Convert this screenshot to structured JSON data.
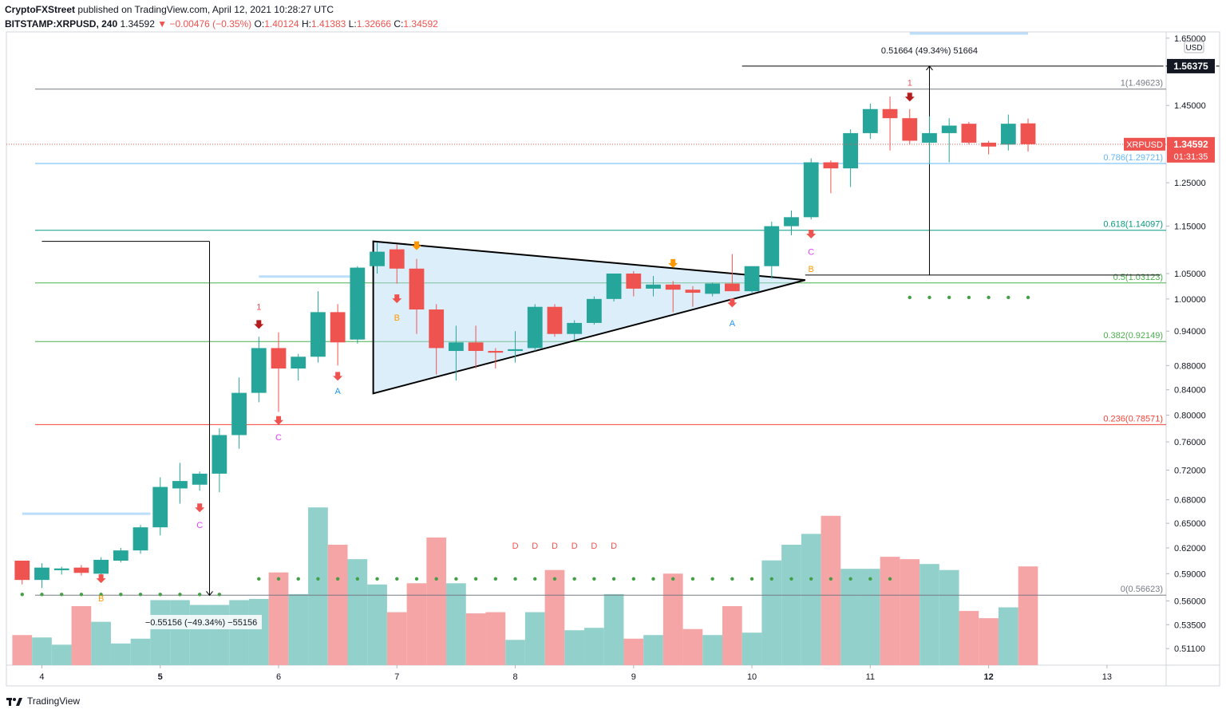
{
  "header": {
    "publisher": "CryptoFXStreet",
    "published_text": "published on TradingView.com, April 12, 2021 10:28:27 UTC",
    "symbol": "BITSTAMP:XRPUSD, 240",
    "last": "1.34592",
    "change": "▼ −0.00476 (−0.35%)",
    "open_label": "O:",
    "open": "1.40124",
    "high_label": "H:",
    "high": "1.41383",
    "low_label": "L:",
    "low": "1.32666",
    "close_label": "C:",
    "close": "1.34592"
  },
  "footer": {
    "brand": "TradingView"
  },
  "colors": {
    "up": "#26a69a",
    "down": "#ef5350",
    "vol_up": "#92d1cb",
    "vol_down": "#f5a5a5"
  },
  "chart_data": {
    "type": "candlestick",
    "y_scale": "log",
    "ylim": [
      0.495,
      1.67
    ],
    "xlim": [
      -0.3,
      58.5
    ],
    "currency": "USD",
    "price_ticks": [
      "1.65000",
      "1.45000",
      "1.25000",
      "1.15000",
      "1.05000",
      "1.00000",
      "0.94000",
      "0.88000",
      "0.84000",
      "0.80000",
      "0.76000",
      "0.72000",
      "0.68000",
      "0.65000",
      "0.62000",
      "0.59000",
      "0.56000",
      "0.53500",
      "0.51100"
    ],
    "x_ticks": [
      {
        "label": "4",
        "x": 1.5,
        "bold": false
      },
      {
        "label": "5",
        "x": 7.5,
        "bold": true
      },
      {
        "label": "6",
        "x": 13.5,
        "bold": false
      },
      {
        "label": "7",
        "x": 19.5,
        "bold": false
      },
      {
        "label": "8",
        "x": 25.5,
        "bold": false
      },
      {
        "label": "9",
        "x": 31.5,
        "bold": false
      },
      {
        "label": "10",
        "x": 37.5,
        "bold": false
      },
      {
        "label": "11",
        "x": 43.5,
        "bold": false
      },
      {
        "label": "12",
        "x": 49.5,
        "bold": true
      },
      {
        "label": "13",
        "x": 55.5,
        "bold": false
      }
    ],
    "candles": [
      [
        0.605,
        0.605,
        0.578,
        0.583
      ],
      [
        0.583,
        0.602,
        0.574,
        0.597
      ],
      [
        0.594,
        0.598,
        0.589,
        0.596
      ],
      [
        0.597,
        0.6,
        0.588,
        0.591
      ],
      [
        0.59,
        0.609,
        0.587,
        0.606
      ],
      [
        0.605,
        0.62,
        0.603,
        0.617
      ],
      [
        0.617,
        0.648,
        0.613,
        0.645
      ],
      [
        0.645,
        0.71,
        0.635,
        0.697
      ],
      [
        0.695,
        0.73,
        0.675,
        0.705
      ],
      [
        0.7,
        0.718,
        0.692,
        0.715
      ],
      [
        0.715,
        0.78,
        0.69,
        0.77
      ],
      [
        0.77,
        0.86,
        0.75,
        0.835
      ],
      [
        0.835,
        0.93,
        0.82,
        0.91
      ],
      [
        0.91,
        0.938,
        0.805,
        0.875
      ],
      [
        0.875,
        0.9,
        0.855,
        0.895
      ],
      [
        0.895,
        1.015,
        0.885,
        0.975
      ],
      [
        0.975,
        0.99,
        0.88,
        0.92
      ],
      [
        0.925,
        1.065,
        0.918,
        1.062
      ],
      [
        1.065,
        1.115,
        1.05,
        1.095
      ],
      [
        1.1,
        1.11,
        1.03,
        1.06
      ],
      [
        1.06,
        1.08,
        0.935,
        0.98
      ],
      [
        0.98,
        0.99,
        0.865,
        0.91
      ],
      [
        0.905,
        0.95,
        0.855,
        0.92
      ],
      [
        0.92,
        0.95,
        0.875,
        0.905
      ],
      [
        0.905,
        0.91,
        0.875,
        0.902
      ],
      [
        0.905,
        0.94,
        0.885,
        0.908
      ],
      [
        0.91,
        0.99,
        0.905,
        0.985
      ],
      [
        0.985,
        0.99,
        0.93,
        0.935
      ],
      [
        0.935,
        0.96,
        0.925,
        0.955
      ],
      [
        0.955,
        1.005,
        0.952,
        1.0
      ],
      [
        1.0,
        1.05,
        0.995,
        1.05
      ],
      [
        1.05,
        1.055,
        1.005,
        1.02
      ],
      [
        1.02,
        1.045,
        1.005,
        1.028
      ],
      [
        1.028,
        1.035,
        0.975,
        1.018
      ],
      [
        1.018,
        1.025,
        0.985,
        1.012
      ],
      [
        1.01,
        1.032,
        1.005,
        1.03
      ],
      [
        1.03,
        1.09,
        1.02,
        1.015
      ],
      [
        1.015,
        1.065,
        1.012,
        1.065
      ],
      [
        1.065,
        1.16,
        1.04,
        1.15
      ],
      [
        1.15,
        1.185,
        1.13,
        1.17
      ],
      [
        1.17,
        1.31,
        1.165,
        1.3
      ],
      [
        1.3,
        1.305,
        1.225,
        1.285
      ],
      [
        1.285,
        1.385,
        1.24,
        1.375
      ],
      [
        1.375,
        1.455,
        1.36,
        1.44
      ],
      [
        1.44,
        1.475,
        1.33,
        1.415
      ],
      [
        1.415,
        1.44,
        1.345,
        1.355
      ],
      [
        1.35,
        1.42,
        1.295,
        1.375
      ],
      [
        1.375,
        1.415,
        1.3,
        1.395
      ],
      [
        1.4,
        1.405,
        1.345,
        1.35
      ],
      [
        1.35,
        1.355,
        1.32,
        1.34
      ],
      [
        1.345,
        1.425,
        1.33,
        1.4
      ],
      [
        1.401,
        1.414,
        1.327,
        1.346
      ]
    ],
    "volumes": [
      0.25,
      0.23,
      0.17,
      0.49,
      0.36,
      0.18,
      0.22,
      0.54,
      0.54,
      0.5,
      0.5,
      0.54,
      0.55,
      0.77,
      0.59,
      1.31,
      1.0,
      0.88,
      0.67,
      0.44,
      0.68,
      1.06,
      0.68,
      0.43,
      0.44,
      0.21,
      0.44,
      0.79,
      0.29,
      0.31,
      0.59,
      0.22,
      0.25,
      0.76,
      0.3,
      0.25,
      0.49,
      0.27,
      0.87,
      1.0,
      1.09,
      1.24,
      0.8,
      0.8,
      0.9,
      0.88,
      0.84,
      0.79,
      0.45,
      0.39,
      0.48,
      0.82
    ],
    "fib_levels": [
      {
        "ratio": "1",
        "value": 1.49623,
        "label": "1(1.49623)",
        "color": "#787b86"
      },
      {
        "ratio": "0.786",
        "value": 1.29721,
        "label": "0.786(1.29721)",
        "color": "#64b5f6"
      },
      {
        "ratio": "0.618",
        "value": 1.14097,
        "label": "0.618(1.14097)",
        "color": "#089981"
      },
      {
        "ratio": "0.5",
        "value": 1.03123,
        "label": "0.5(1.03123)",
        "color": "#4caf50"
      },
      {
        "ratio": "0.382",
        "value": 0.92149,
        "label": "0.382(0.92149)",
        "color": "#4caf50"
      },
      {
        "ratio": "0.236",
        "value": 0.78571,
        "label": "0.236(0.78571)",
        "color": "#f44336"
      },
      {
        "ratio": "0",
        "value": 0.56623,
        "label": "0(0.56623)",
        "color": "#787b86"
      }
    ],
    "last_price_label": "1.34592",
    "symbol_tag": "XRPUSD",
    "countdown": "01:31:35",
    "target_price_label": "1.56375",
    "target_price": 1.56375,
    "measure_up": {
      "text": "0.51664 (49.34%) 51664",
      "x": 46.5,
      "from": 1.047,
      "to": 1.56375
    },
    "measure_down": {
      "text": "−0.55156 (−49.34%) −55156",
      "x": 10,
      "from": 1.117,
      "to": 0.566
    },
    "triangle": [
      [
        18.3,
        1.117
      ],
      [
        18.3,
        0.834
      ],
      [
        40.2,
        1.037
      ]
    ],
    "breakout_line": {
      "from": [
        40.2,
        1.047
      ],
      "to": [
        58.2,
        1.047
      ]
    },
    "pole_line": {
      "from": [
        1.5,
        1.117
      ],
      "to": [
        10,
        1.117
      ]
    },
    "target_line": {
      "from": [
        37,
        1.56375
      ],
      "to": [
        58.2,
        1.56375
      ]
    },
    "dots_low": {
      "from": 0.5,
      "to": 10.5,
      "step": 1,
      "y": 0.567
    },
    "dots_mid": {
      "from": 12.5,
      "to": 44.5,
      "step": 1,
      "y": 0.5842
    },
    "dots_high": {
      "from": 45.5,
      "to": 51.5,
      "step": 1,
      "y": 1.003
    },
    "markers": [
      {
        "x": 12.5,
        "y": 0.95,
        "type": "arrow",
        "color": "#b71c1c"
      },
      {
        "x": 12.5,
        "y": 0.985,
        "type": "text",
        "text": "1",
        "color": "#ef5350"
      },
      {
        "x": 16.5,
        "y": 0.86,
        "type": "arrow",
        "color": "#ef5350"
      },
      {
        "x": 16.5,
        "y": 0.838,
        "type": "text",
        "text": "A",
        "color": "#2196f3"
      },
      {
        "x": 13.5,
        "y": 0.79,
        "type": "arrow",
        "color": "#ef5350"
      },
      {
        "x": 13.5,
        "y": 0.767,
        "type": "text",
        "text": "C",
        "color": "#e040fb"
      },
      {
        "x": 9.5,
        "y": 0.668,
        "type": "arrow",
        "color": "#ef5350"
      },
      {
        "x": 9.5,
        "y": 0.648,
        "type": "text",
        "text": "C",
        "color": "#e040fb"
      },
      {
        "x": 4.5,
        "y": 0.583,
        "type": "arrow",
        "color": "#ef5350"
      },
      {
        "x": 4.5,
        "y": 0.563,
        "type": "text",
        "text": "B",
        "color": "#ff9800"
      },
      {
        "x": 19.5,
        "y": 0.998,
        "type": "arrow",
        "color": "#ef5350"
      },
      {
        "x": 19.5,
        "y": 0.965,
        "type": "text",
        "text": "B",
        "color": "#ff9800"
      },
      {
        "x": 20.5,
        "y": 1.105,
        "type": "arrow",
        "color": "#ff9800"
      },
      {
        "x": 33.5,
        "y": 1.068,
        "type": "arrow",
        "color": "#ff9800"
      },
      {
        "x": 36.5,
        "y": 0.99,
        "type": "arrow",
        "color": "#ef5350"
      },
      {
        "x": 36.5,
        "y": 0.955,
        "type": "text",
        "text": "A",
        "color": "#2196f3"
      },
      {
        "x": 40.5,
        "y": 1.13,
        "type": "arrow",
        "color": "#ef5350"
      },
      {
        "x": 40.5,
        "y": 1.095,
        "type": "text",
        "text": "C",
        "color": "#e040fb"
      },
      {
        "x": 40.5,
        "y": 1.06,
        "type": "text",
        "text": "B",
        "color": "#ff9800"
      },
      {
        "x": 45.5,
        "y": 1.47,
        "type": "arrow",
        "color": "#b71c1c"
      },
      {
        "x": 45.5,
        "y": 1.515,
        "type": "text",
        "text": "1",
        "color": "#ef5350"
      },
      {
        "x": 25.5,
        "y": 0.623,
        "type": "text",
        "text": "D",
        "color": "#ef5350"
      },
      {
        "x": 26.5,
        "y": 0.623,
        "type": "text",
        "text": "D",
        "color": "#ef5350"
      },
      {
        "x": 27.5,
        "y": 0.623,
        "type": "text",
        "text": "D",
        "color": "#ef5350"
      },
      {
        "x": 28.5,
        "y": 0.623,
        "type": "text",
        "text": "D",
        "color": "#ef5350"
      },
      {
        "x": 29.5,
        "y": 0.623,
        "type": "text",
        "text": "D",
        "color": "#ef5350"
      },
      {
        "x": 30.5,
        "y": 0.623,
        "type": "text",
        "text": "D",
        "color": "#ef5350"
      }
    ],
    "light_lines": [
      {
        "x1": 0.5,
        "x2": 7,
        "y": 0.662
      },
      {
        "x1": 12.5,
        "x2": 17.5,
        "y": 1.044
      },
      {
        "x1": 45.5,
        "x2": 51.5,
        "y": 1.665
      }
    ]
  }
}
